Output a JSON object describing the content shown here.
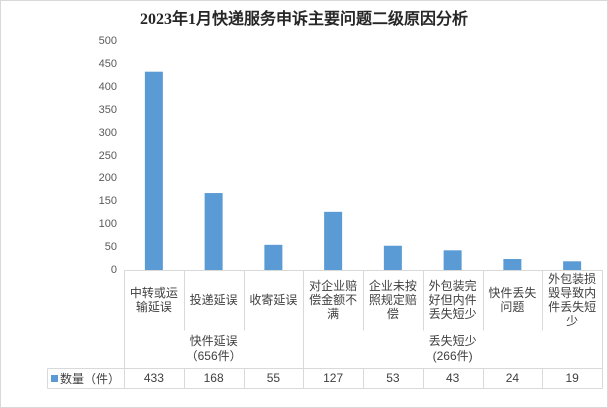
{
  "chart_data": {
    "type": "bar",
    "title": "2023年1月快递服务申诉主要问题二级原因分析",
    "ylim": [
      0,
      500
    ],
    "yticks": [
      0,
      50,
      100,
      150,
      200,
      250,
      300,
      350,
      400,
      450,
      500
    ],
    "grid": false,
    "legend": "bottom-left",
    "groups": [
      {
        "label": "快件延误",
        "sublabel": "（656件）",
        "categories": [
          "中转或运输延误",
          "投递延误",
          "收寄延误"
        ]
      },
      {
        "label": "丢失短少",
        "sublabel": "(266件)",
        "categories": [
          "对企业赔偿金额不满",
          "企业未按照规定赔偿",
          "外包装完好但内件丢失短少",
          "快件丢失问题",
          "外包装损毁导致内件丢失短少"
        ]
      }
    ],
    "series": [
      {
        "name": "数量（件）",
        "color": "#5b9bd5",
        "values": [
          433,
          168,
          55,
          127,
          53,
          43,
          24,
          19
        ]
      }
    ]
  }
}
